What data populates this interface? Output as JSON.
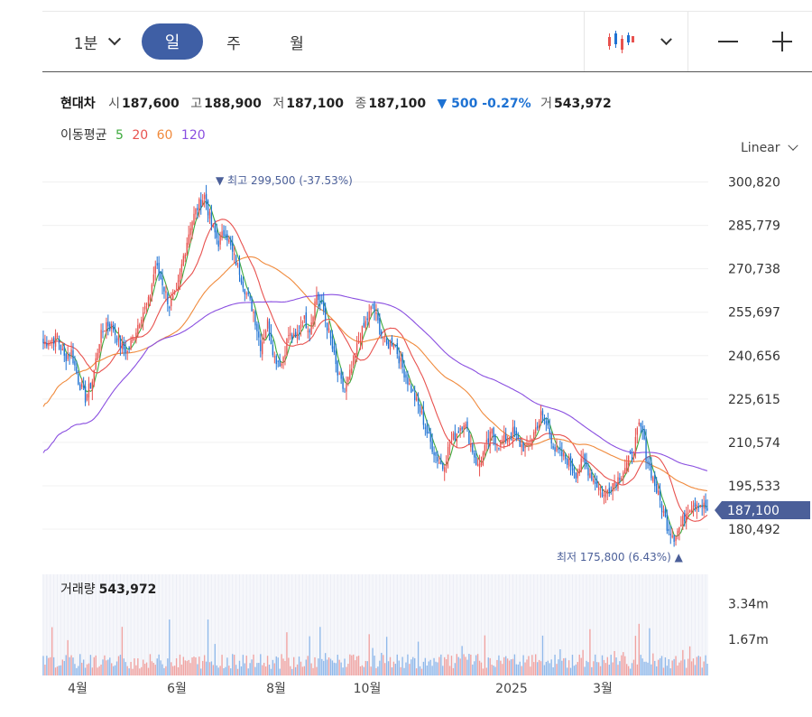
{
  "toolbar": {
    "interval_label": "1분",
    "day_label": "일",
    "week_label": "주",
    "month_label": "월",
    "chart_type_icon": "candlestick-icon",
    "zoom_out_icon": "minus-icon",
    "zoom_in_icon": "plus-icon"
  },
  "quote": {
    "name": "현대차",
    "open_label": "시",
    "open": "187,600",
    "high_label": "고",
    "high": "188,900",
    "low_label": "저",
    "low": "187,100",
    "close_label": "종",
    "close": "187,100",
    "change": "▼ 500 -0.27%",
    "volume_label": "거",
    "volume": "543,972"
  },
  "moving_average": {
    "label": "이동평균",
    "periods": [
      {
        "value": "5",
        "color": "#3daa3d"
      },
      {
        "value": "20",
        "color": "#e8524f"
      },
      {
        "value": "60",
        "color": "#f08a3c"
      },
      {
        "value": "120",
        "color": "#8a4fe0"
      }
    ]
  },
  "scale_mode": "Linear",
  "colors": {
    "up": "#e8524f",
    "down": "#1e72d3",
    "tag": "#4b5f99"
  },
  "chart_data": [
    {
      "type": "candlestick",
      "title": "",
      "y_ticks": [
        "300,820",
        "285,779",
        "270,738",
        "255,697",
        "240,656",
        "225,615",
        "210,574",
        "195,533",
        "180,492"
      ],
      "y_tick_values": [
        300820,
        285779,
        270738,
        255697,
        240656,
        225615,
        210574,
        195533,
        180492
      ],
      "ylim": [
        173000,
        306000
      ],
      "x_ticks": [
        "4월",
        "6월",
        "8월",
        "10월",
        "2025",
        "3월"
      ],
      "current_price_tag": "187,100",
      "high_annotation": {
        "label": "▼ 최고 299,500 (-37.53%)",
        "value": 299500
      },
      "low_annotation": {
        "label": "최저 175,800 (6.43%) ▲",
        "value": 175800
      },
      "anchors": [
        [
          0,
          245000
        ],
        [
          8,
          247000
        ],
        [
          12,
          240000
        ],
        [
          16,
          242000
        ],
        [
          20,
          232000
        ],
        [
          24,
          226000
        ],
        [
          28,
          232000
        ],
        [
          32,
          246000
        ],
        [
          36,
          252000
        ],
        [
          40,
          250000
        ],
        [
          44,
          244000
        ],
        [
          48,
          242000
        ],
        [
          52,
          248000
        ],
        [
          56,
          255000
        ],
        [
          60,
          259000
        ],
        [
          64,
          272000
        ],
        [
          68,
          266000
        ],
        [
          72,
          258000
        ],
        [
          76,
          262000
        ],
        [
          80,
          275000
        ],
        [
          84,
          286000
        ],
        [
          88,
          292000
        ],
        [
          92,
          296000
        ],
        [
          96,
          286000
        ],
        [
          100,
          280000
        ],
        [
          104,
          284000
        ],
        [
          108,
          276000
        ],
        [
          112,
          270000
        ],
        [
          116,
          262000
        ],
        [
          120,
          256000
        ],
        [
          124,
          244000
        ],
        [
          128,
          252000
        ],
        [
          132,
          240000
        ],
        [
          136,
          238000
        ],
        [
          140,
          248000
        ],
        [
          144,
          246000
        ],
        [
          148,
          254000
        ],
        [
          152,
          250000
        ],
        [
          156,
          262000
        ],
        [
          160,
          256000
        ],
        [
          164,
          246000
        ],
        [
          168,
          234000
        ],
        [
          172,
          228000
        ],
        [
          176,
          236000
        ],
        [
          180,
          246000
        ],
        [
          184,
          252000
        ],
        [
          188,
          258000
        ],
        [
          192,
          250000
        ],
        [
          196,
          244000
        ],
        [
          200,
          246000
        ],
        [
          204,
          238000
        ],
        [
          208,
          232000
        ],
        [
          212,
          226000
        ],
        [
          216,
          220000
        ],
        [
          220,
          212000
        ],
        [
          224,
          206000
        ],
        [
          228,
          202000
        ],
        [
          232,
          210000
        ],
        [
          236,
          214000
        ],
        [
          240,
          218000
        ],
        [
          244,
          210000
        ],
        [
          248,
          202000
        ],
        [
          252,
          208000
        ],
        [
          256,
          214000
        ],
        [
          260,
          210000
        ],
        [
          264,
          212000
        ],
        [
          268,
          214000
        ],
        [
          272,
          210000
        ],
        [
          276,
          208000
        ],
        [
          280,
          214000
        ],
        [
          284,
          220000
        ],
        [
          288,
          216000
        ],
        [
          292,
          208000
        ],
        [
          296,
          206000
        ],
        [
          300,
          204000
        ],
        [
          304,
          200000
        ],
        [
          308,
          204000
        ],
        [
          312,
          200000
        ],
        [
          316,
          196000
        ],
        [
          320,
          192000
        ],
        [
          324,
          196000
        ],
        [
          328,
          198000
        ],
        [
          332,
          202000
        ],
        [
          336,
          206000
        ],
        [
          340,
          216000
        ],
        [
          342,
          214000
        ],
        [
          344,
          206000
        ],
        [
          348,
          198000
        ],
        [
          352,
          190000
        ],
        [
          356,
          182000
        ],
        [
          360,
          178000
        ],
        [
          364,
          182000
        ],
        [
          368,
          188000
        ],
        [
          372,
          190000
        ],
        [
          376,
          189000
        ],
        [
          379,
          187100
        ]
      ],
      "volume": {
        "label": "거래량",
        "last": "543,972",
        "y_ticks": [
          "3.34m",
          "1.67m"
        ],
        "y_tick_values": [
          3340000,
          1670000
        ]
      }
    }
  ]
}
